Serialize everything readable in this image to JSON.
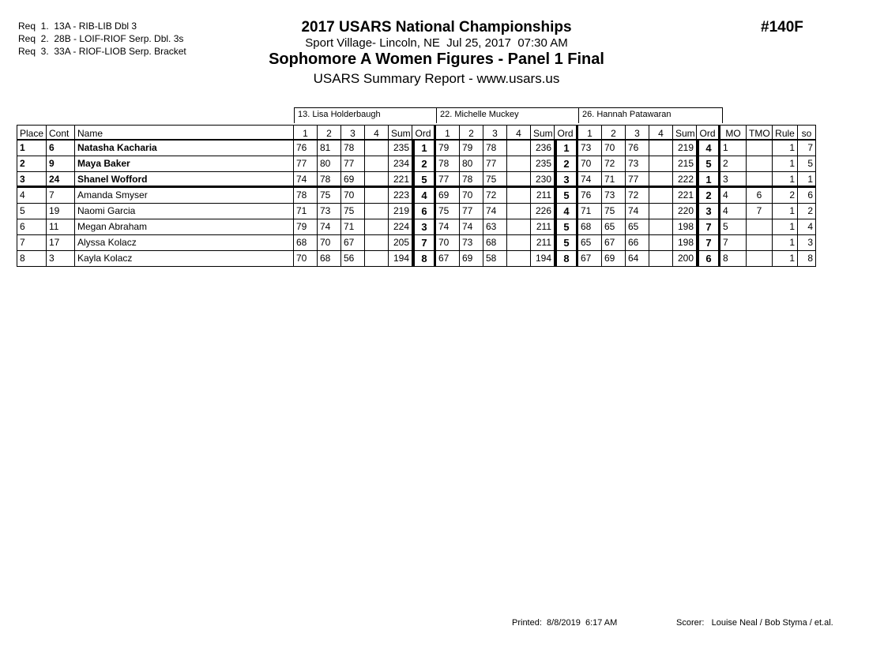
{
  "header": {
    "requirements": [
      "Req  1.  13A - RIB-LIB Dbl 3",
      "Req  2.  28B - LOIF-RIOF Serp. Dbl. 3s",
      "Req  3.  33A - RIOF-LIOB Serp. Bracket"
    ],
    "title": "2017 USARS National Championships",
    "venue": "Sport Village- Lincoln, NE  Jul 25, 2017  07:30 AM",
    "event": "Sophomore A Women Figures - Panel 1 Final",
    "report": "USARS Summary Report - www.usars.us",
    "code": "#140F"
  },
  "table": {
    "judges": [
      "13.  Lisa Holderbaugh",
      "22.  Michelle Muckey",
      "26.  Hannah Patawaran"
    ],
    "columns": [
      "Place",
      "Cont",
      "Name",
      "1",
      "2",
      "3",
      "4",
      "Sum",
      "Ord",
      "1",
      "2",
      "3",
      "4",
      "Sum",
      "Ord",
      "1",
      "2",
      "3",
      "4",
      "Sum",
      "Ord",
      "MO",
      "TMO",
      "Rule",
      "so"
    ],
    "rows": [
      [
        1,
        6,
        "Natasha Kacharia",
        76,
        81,
        78,
        null,
        235,
        1,
        79,
        79,
        78,
        null,
        236,
        1,
        73,
        70,
        76,
        null,
        219,
        4,
        1,
        null,
        1,
        7
      ],
      [
        2,
        9,
        "Maya Baker",
        77,
        80,
        77,
        null,
        234,
        2,
        78,
        80,
        77,
        null,
        235,
        2,
        70,
        72,
        73,
        null,
        215,
        5,
        2,
        null,
        1,
        5
      ],
      [
        3,
        24,
        "Shanel Wofford",
        74,
        78,
        69,
        null,
        221,
        5,
        77,
        78,
        75,
        null,
        230,
        3,
        74,
        71,
        77,
        null,
        222,
        1,
        3,
        null,
        1,
        1
      ],
      [
        4,
        7,
        "Amanda Smyser",
        78,
        75,
        70,
        null,
        223,
        4,
        69,
        70,
        72,
        null,
        211,
        5,
        76,
        73,
        72,
        null,
        221,
        2,
        4,
        6,
        2,
        6
      ],
      [
        5,
        19,
        "Naomi Garcia",
        71,
        73,
        75,
        null,
        219,
        6,
        75,
        77,
        74,
        null,
        226,
        4,
        71,
        75,
        74,
        null,
        220,
        3,
        4,
        7,
        1,
        2
      ],
      [
        6,
        11,
        "Megan Abraham",
        79,
        74,
        71,
        null,
        224,
        3,
        74,
        74,
        63,
        null,
        211,
        5,
        68,
        65,
        65,
        null,
        198,
        7,
        5,
        null,
        1,
        4
      ],
      [
        7,
        17,
        "Alyssa Kolacz",
        68,
        70,
        67,
        null,
        205,
        7,
        70,
        73,
        68,
        null,
        211,
        5,
        65,
        67,
        66,
        null,
        198,
        7,
        7,
        null,
        1,
        3
      ],
      [
        8,
        3,
        "Kayla Kolacz",
        70,
        68,
        56,
        null,
        194,
        8,
        67,
        69,
        58,
        null,
        194,
        8,
        67,
        69,
        64,
        null,
        200,
        6,
        8,
        null,
        1,
        8
      ]
    ]
  },
  "footer": {
    "printed": "Printed:  8/8/2019  6:17 AM",
    "scorer": "Scorer:   Louise Neal / Bob Styma / et.al."
  }
}
